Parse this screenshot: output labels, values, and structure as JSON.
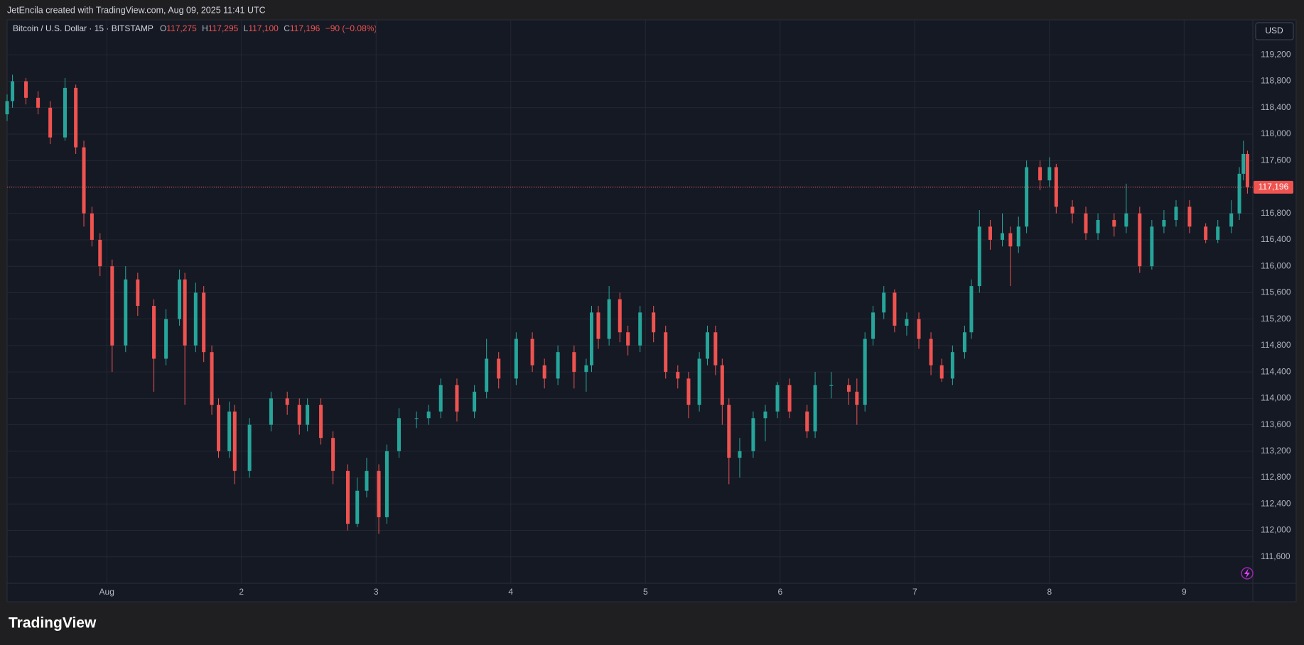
{
  "header": {
    "credit": "JetEncila created with TradingView.com, Aug 09, 2025 11:41 UTC",
    "brand": "TradingView"
  },
  "chart_data": {
    "type": "candlestick",
    "legend": {
      "symbol": "Bitcoin / U.S. Dollar · 15 · BITSTAMP",
      "open_label": "O",
      "open": "117,275",
      "high_label": "H",
      "high": "117,295",
      "low_label": "L",
      "low": "117,100",
      "close_label": "C",
      "close": "117,196",
      "change": "−90 (−0.08%)"
    },
    "currency": "USD",
    "up_color": "#26a69a",
    "down_color": "#ef5350",
    "grid": true,
    "xlim": [
      0.26,
      9.51
    ],
    "xticks": [
      {
        "value": 1,
        "label": "Aug"
      },
      2,
      3,
      4,
      5,
      6,
      7,
      8,
      9
    ],
    "ylim": [
      111200,
      119730
    ],
    "yticks": [
      {
        "value": 111600,
        "label": "111,600"
      },
      {
        "value": 112000,
        "label": "112,000"
      },
      {
        "value": 112400,
        "label": "112,400"
      },
      {
        "value": 112800,
        "label": "112,800"
      },
      {
        "value": 113200,
        "label": "113,200"
      },
      {
        "value": 113600,
        "label": "113,600"
      },
      {
        "value": 114000,
        "label": "114,000"
      },
      {
        "value": 114400,
        "label": "114,400"
      },
      {
        "value": 114800,
        "label": "114,800"
      },
      {
        "value": 115200,
        "label": "115,200"
      },
      {
        "value": 115600,
        "label": "115,600"
      },
      {
        "value": 116000,
        "label": "116,000"
      },
      {
        "value": 116400,
        "label": "116,400"
      },
      {
        "value": 116800,
        "label": "116,800"
      },
      {
        "value": 117200,
        "label": "117,200"
      },
      {
        "value": 117600,
        "label": "117,600"
      },
      {
        "value": 118000,
        "label": "118,000"
      },
      {
        "value": 118400,
        "label": "118,400"
      },
      {
        "value": 118800,
        "label": "118,800"
      },
      {
        "value": 119200,
        "label": "119,200"
      }
    ],
    "price_line": {
      "value": 117196,
      "label": "117,196"
    },
    "x": [
      0.26,
      0.3,
      0.4,
      0.49,
      0.58,
      0.69,
      0.77,
      0.83,
      0.89,
      0.95,
      1.04,
      1.14,
      1.23,
      1.35,
      1.44,
      1.54,
      1.58,
      1.66,
      1.72,
      1.78,
      1.83,
      1.91,
      1.95,
      2.06,
      2.22,
      2.34,
      2.43,
      2.49,
      2.59,
      2.68,
      2.79,
      2.86,
      2.93,
      3.02,
      3.08,
      3.17,
      3.3,
      3.39,
      3.48,
      3.6,
      3.73,
      3.82,
      3.91,
      4.04,
      4.16,
      4.25,
      4.35,
      4.47,
      4.56,
      4.6,
      4.65,
      4.73,
      4.81,
      4.87,
      4.96,
      5.06,
      5.15,
      5.24,
      5.32,
      5.4,
      5.46,
      5.52,
      5.57,
      5.62,
      5.7,
      5.8,
      5.89,
      5.98,
      6.07,
      6.2,
      6.26,
      6.38,
      6.51,
      6.57,
      6.63,
      6.69,
      6.77,
      6.85,
      6.94,
      7.03,
      7.12,
      7.2,
      7.28,
      7.37,
      7.42,
      7.48,
      7.56,
      7.65,
      7.71,
      7.77,
      7.83,
      7.93,
      8.0,
      8.05,
      8.17,
      8.27,
      8.36,
      8.48,
      8.57,
      8.67,
      8.76,
      8.85,
      8.94,
      9.04,
      9.16,
      9.25,
      9.35,
      9.41,
      9.44,
      9.47
    ],
    "open": [
      118300,
      118500,
      118800,
      118550,
      118400,
      117950,
      118700,
      117800,
      116800,
      116400,
      116000,
      114800,
      115800,
      115400,
      114600,
      115200,
      115800,
      114800,
      115600,
      114700,
      113900,
      113200,
      113800,
      112900,
      113600,
      114000,
      113900,
      113600,
      113900,
      113400,
      112900,
      112100,
      112600,
      112900,
      112200,
      113200,
      113700,
      113700,
      113800,
      114200,
      113800,
      114100,
      114600,
      114300,
      114900,
      114500,
      114300,
      114700,
      114400,
      114500,
      115300,
      114900,
      115500,
      115000,
      114800,
      115300,
      115000,
      114400,
      114300,
      113900,
      114600,
      115000,
      114500,
      113900,
      113100,
      113200,
      113700,
      113800,
      114200,
      113800,
      113500,
      114200,
      114200,
      114100,
      113900,
      114900,
      115300,
      115600,
      115100,
      115200,
      114900,
      114500,
      114300,
      114700,
      115000,
      115700,
      116600,
      116400,
      116500,
      116300,
      116600,
      117500,
      117300,
      117500,
      116900,
      116800,
      116500,
      116700,
      116600,
      116800,
      116000,
      116600,
      116700,
      116900,
      116600,
      116400,
      116600,
      116800,
      117400,
      117700
    ],
    "high": [
      118600,
      118900,
      118850,
      118650,
      118500,
      118850,
      118750,
      117900,
      116900,
      116500,
      116100,
      116000,
      115900,
      115500,
      115350,
      115950,
      115900,
      115750,
      115700,
      114800,
      114000,
      113950,
      113900,
      113700,
      114100,
      114100,
      114000,
      114000,
      114000,
      113500,
      113000,
      112800,
      113100,
      113000,
      113300,
      113850,
      113800,
      113900,
      114300,
      114300,
      114200,
      114900,
      114700,
      115000,
      115000,
      114600,
      114800,
      114800,
      114600,
      115400,
      115400,
      115700,
      115600,
      115100,
      115400,
      115400,
      115100,
      114500,
      114400,
      114700,
      115100,
      115100,
      114600,
      114000,
      113400,
      113800,
      113900,
      114250,
      114300,
      113900,
      114400,
      114400,
      114300,
      114300,
      115000,
      115400,
      115700,
      115650,
      115300,
      115300,
      115000,
      114600,
      114800,
      115100,
      115800,
      116850,
      116700,
      116800,
      116600,
      116750,
      117600,
      117600,
      117650,
      117550,
      117000,
      116900,
      116800,
      116800,
      117250,
      116900,
      116700,
      116850,
      117000,
      117000,
      116650,
      116700,
      117000,
      117500,
      117900,
      117750
    ],
    "low": [
      118200,
      118400,
      118450,
      118300,
      117850,
      117900,
      117700,
      116600,
      116300,
      115850,
      114400,
      114700,
      115250,
      114100,
      114500,
      115100,
      113900,
      114700,
      114550,
      113750,
      113100,
      113100,
      112700,
      112800,
      113500,
      113750,
      113450,
      113500,
      113300,
      112700,
      112000,
      112050,
      112500,
      111950,
      112100,
      113100,
      113550,
      113600,
      113700,
      113650,
      113700,
      114000,
      114150,
      114200,
      114400,
      114150,
      114200,
      114150,
      114100,
      114400,
      114750,
      114800,
      114850,
      114650,
      114700,
      114850,
      114300,
      114150,
      113700,
      113800,
      114500,
      114350,
      113600,
      112700,
      112800,
      113100,
      113350,
      113700,
      113700,
      113400,
      113400,
      114000,
      113900,
      113600,
      113800,
      114800,
      115200,
      115000,
      114950,
      114750,
      114350,
      114250,
      114200,
      114600,
      114900,
      115600,
      116250,
      116300,
      115700,
      116200,
      116500,
      117150,
      117200,
      116800,
      116650,
      116400,
      116400,
      116450,
      116500,
      115900,
      115950,
      116500,
      116600,
      116500,
      116350,
      116350,
      116500,
      116700,
      117300,
      117100
    ],
    "close": [
      118500,
      118800,
      118550,
      118400,
      117950,
      118700,
      117800,
      116800,
      116400,
      116000,
      114800,
      115800,
      115400,
      114600,
      115200,
      115800,
      114800,
      115600,
      114700,
      113900,
      113200,
      113800,
      112900,
      113600,
      114000,
      113900,
      113600,
      113900,
      113400,
      112900,
      112100,
      112600,
      112900,
      112200,
      113200,
      113700,
      113700,
      113800,
      114200,
      113800,
      114100,
      114600,
      114300,
      114900,
      114500,
      114300,
      114700,
      114400,
      114500,
      115300,
      114900,
      115500,
      115000,
      114800,
      115300,
      115000,
      114400,
      114300,
      113900,
      114600,
      115000,
      114500,
      113900,
      113100,
      113200,
      113700,
      113800,
      114200,
      113800,
      113500,
      114200,
      114200,
      114100,
      113900,
      114900,
      115300,
      115600,
      115100,
      115200,
      114900,
      114500,
      114300,
      114700,
      115000,
      115700,
      116600,
      116400,
      116500,
      116300,
      116600,
      117500,
      117300,
      117500,
      116900,
      116800,
      116500,
      116700,
      116600,
      116800,
      116000,
      116600,
      116700,
      116900,
      116600,
      116400,
      116600,
      116800,
      117400,
      117700,
      117196
    ]
  }
}
